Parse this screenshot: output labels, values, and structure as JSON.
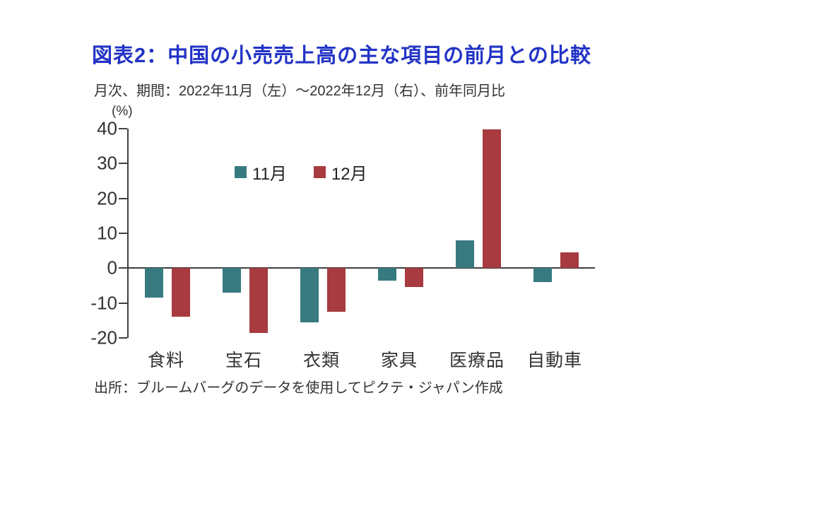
{
  "header": {
    "title": "図表2：中国の小売売上高の主な項目の前月との比較",
    "subtitle": "月次、期間：2022年11月（左）～2022年12月（右）、前年同月比"
  },
  "colors": {
    "title": "#2233C5",
    "text": "#333333",
    "axis": "#404040",
    "november": "#377B80",
    "december": "#A73B3F"
  },
  "chart_data": {
    "type": "bar",
    "title": "図表2：中国の小売売上高の主な項目の前月との比較",
    "subtitle": "月次、期間：2022年11月（左）～2022年12月（右）、前年同月比",
    "unit_label": "(%)",
    "categories": [
      "食料",
      "宝石",
      "衣類",
      "家具",
      "医療品",
      "自動車"
    ],
    "series": [
      {
        "name": "11月",
        "color": "#377B80",
        "values": [
          -8.5,
          -7,
          -15.5,
          -3.5,
          8,
          -4
        ]
      },
      {
        "name": "12月",
        "color": "#A73B3F",
        "values": [
          -14,
          -18.5,
          -12.5,
          -5.5,
          39.8,
          4.5
        ]
      }
    ],
    "ylim": [
      -20,
      40
    ],
    "yticks": [
      40,
      30,
      20,
      10,
      0,
      -10,
      -20
    ],
    "grid": false,
    "legend_position": "top-inside",
    "xlabel": "",
    "ylabel": "(%)"
  },
  "footer": {
    "source": "出所：ブルームバーグのデータを使用してピクテ・ジャパン作成"
  }
}
